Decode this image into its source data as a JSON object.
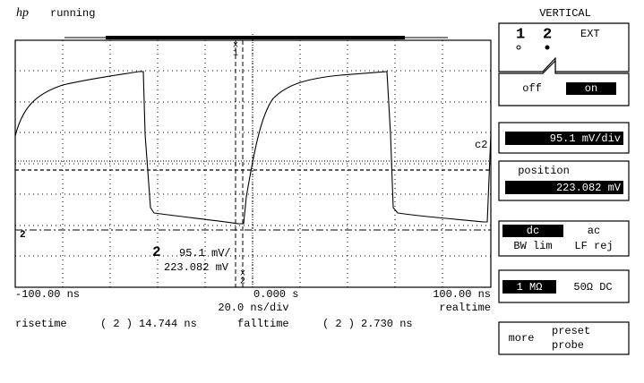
{
  "header": {
    "logo": "hp",
    "status": "running"
  },
  "display": {
    "channel_label": "2",
    "volts_per_div": "95.1 mV/",
    "offset": "223.082 mV",
    "marker_c2": "c2",
    "marker_x1": "1",
    "marker_x2": "2",
    "x_axis": {
      "left": "-100.00 ns",
      "center": "0.000  s",
      "right": "100.00 ns",
      "scale": "20.0 ns/div",
      "mode": "realtime"
    }
  },
  "measurements": [
    {
      "name": "risetime",
      "channel": "( 2 )",
      "value": "14.744 ns"
    },
    {
      "name": "falltime",
      "channel": "( 2 )",
      "value": "2.730  ns"
    }
  ],
  "panel": {
    "title": "VERTICAL",
    "channels": [
      "1",
      "2",
      "EXT"
    ],
    "state": [
      "off",
      "on"
    ],
    "scale": "95.1 mV/div",
    "position_label": "position",
    "position": "223.082 mV",
    "coupling": [
      "dc",
      "ac"
    ],
    "filters": [
      "BW lim",
      "LF rej"
    ],
    "impedance": [
      "1 MΩ",
      "50Ω DC"
    ],
    "more": "more",
    "preset": [
      "preset",
      "probe"
    ]
  }
}
